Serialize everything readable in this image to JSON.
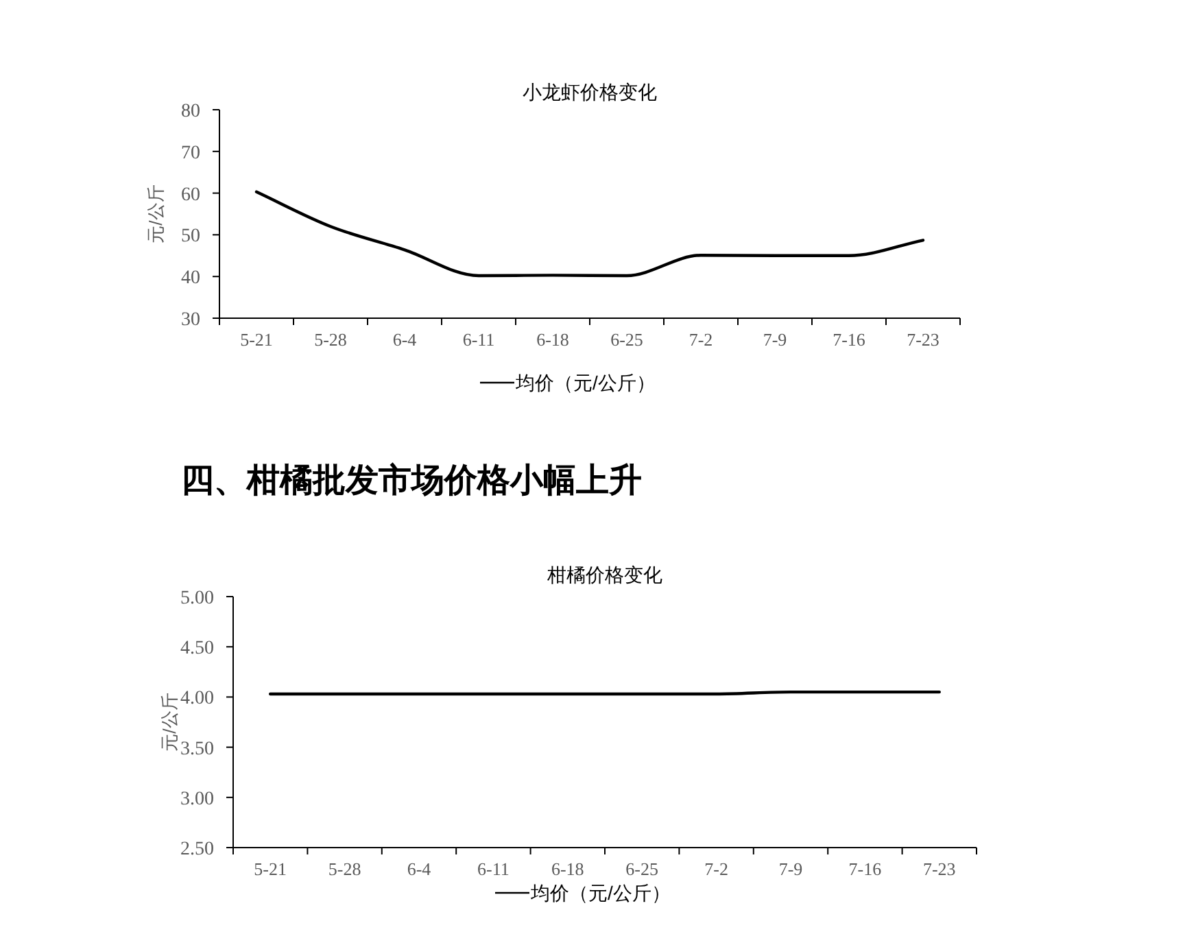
{
  "chart_data": [
    {
      "type": "line",
      "title": "小龙虾价格变化",
      "ylabel": "元/公斤",
      "categories": [
        "5-21",
        "5-28",
        "6-4",
        "6-11",
        "6-18",
        "6-25",
        "7-2",
        "7-9",
        "7-16",
        "7-23"
      ],
      "series": [
        {
          "name": "均价（元/公斤）",
          "color": "#000000",
          "values": [
            60.3,
            52,
            46.4,
            40.2,
            40.3,
            40.2,
            45.1,
            45,
            45,
            48.7
          ]
        }
      ],
      "ylim": [
        30,
        80
      ],
      "yticks": [
        30,
        40,
        50,
        60,
        70,
        80
      ],
      "legend": "bottom",
      "grid": false,
      "marker": "none",
      "line_style": "solid"
    },
    {
      "type": "line",
      "title": "柑橘价格变化",
      "ylabel": "元/公斤",
      "annotations": [
        "四、柑橘批发市场价格小幅上升"
      ],
      "categories": [
        "5-21",
        "5-28",
        "6-4",
        "6-11",
        "6-18",
        "6-25",
        "7-2",
        "7-9",
        "7-16",
        "7-23"
      ],
      "series": [
        {
          "name": "均价（元/公斤）",
          "color": "#000000",
          "values": [
            4.03,
            4.03,
            4.03,
            4.03,
            4.03,
            4.03,
            4.03,
            4.05,
            4.05,
            4.05
          ]
        }
      ],
      "ylim": [
        2.5,
        5
      ],
      "yticks": [
        {
          "value": 2.5,
          "label": "2.50"
        },
        {
          "value": 3,
          "label": "3.00"
        },
        {
          "value": 3.5,
          "label": "3.50"
        },
        {
          "value": 4,
          "label": "4.00"
        },
        {
          "value": 4.5,
          "label": "4.50"
        },
        {
          "value": 5,
          "label": "5.00"
        }
      ],
      "legend": "bottom",
      "grid": false,
      "marker": "none",
      "line_style": "solid"
    }
  ]
}
